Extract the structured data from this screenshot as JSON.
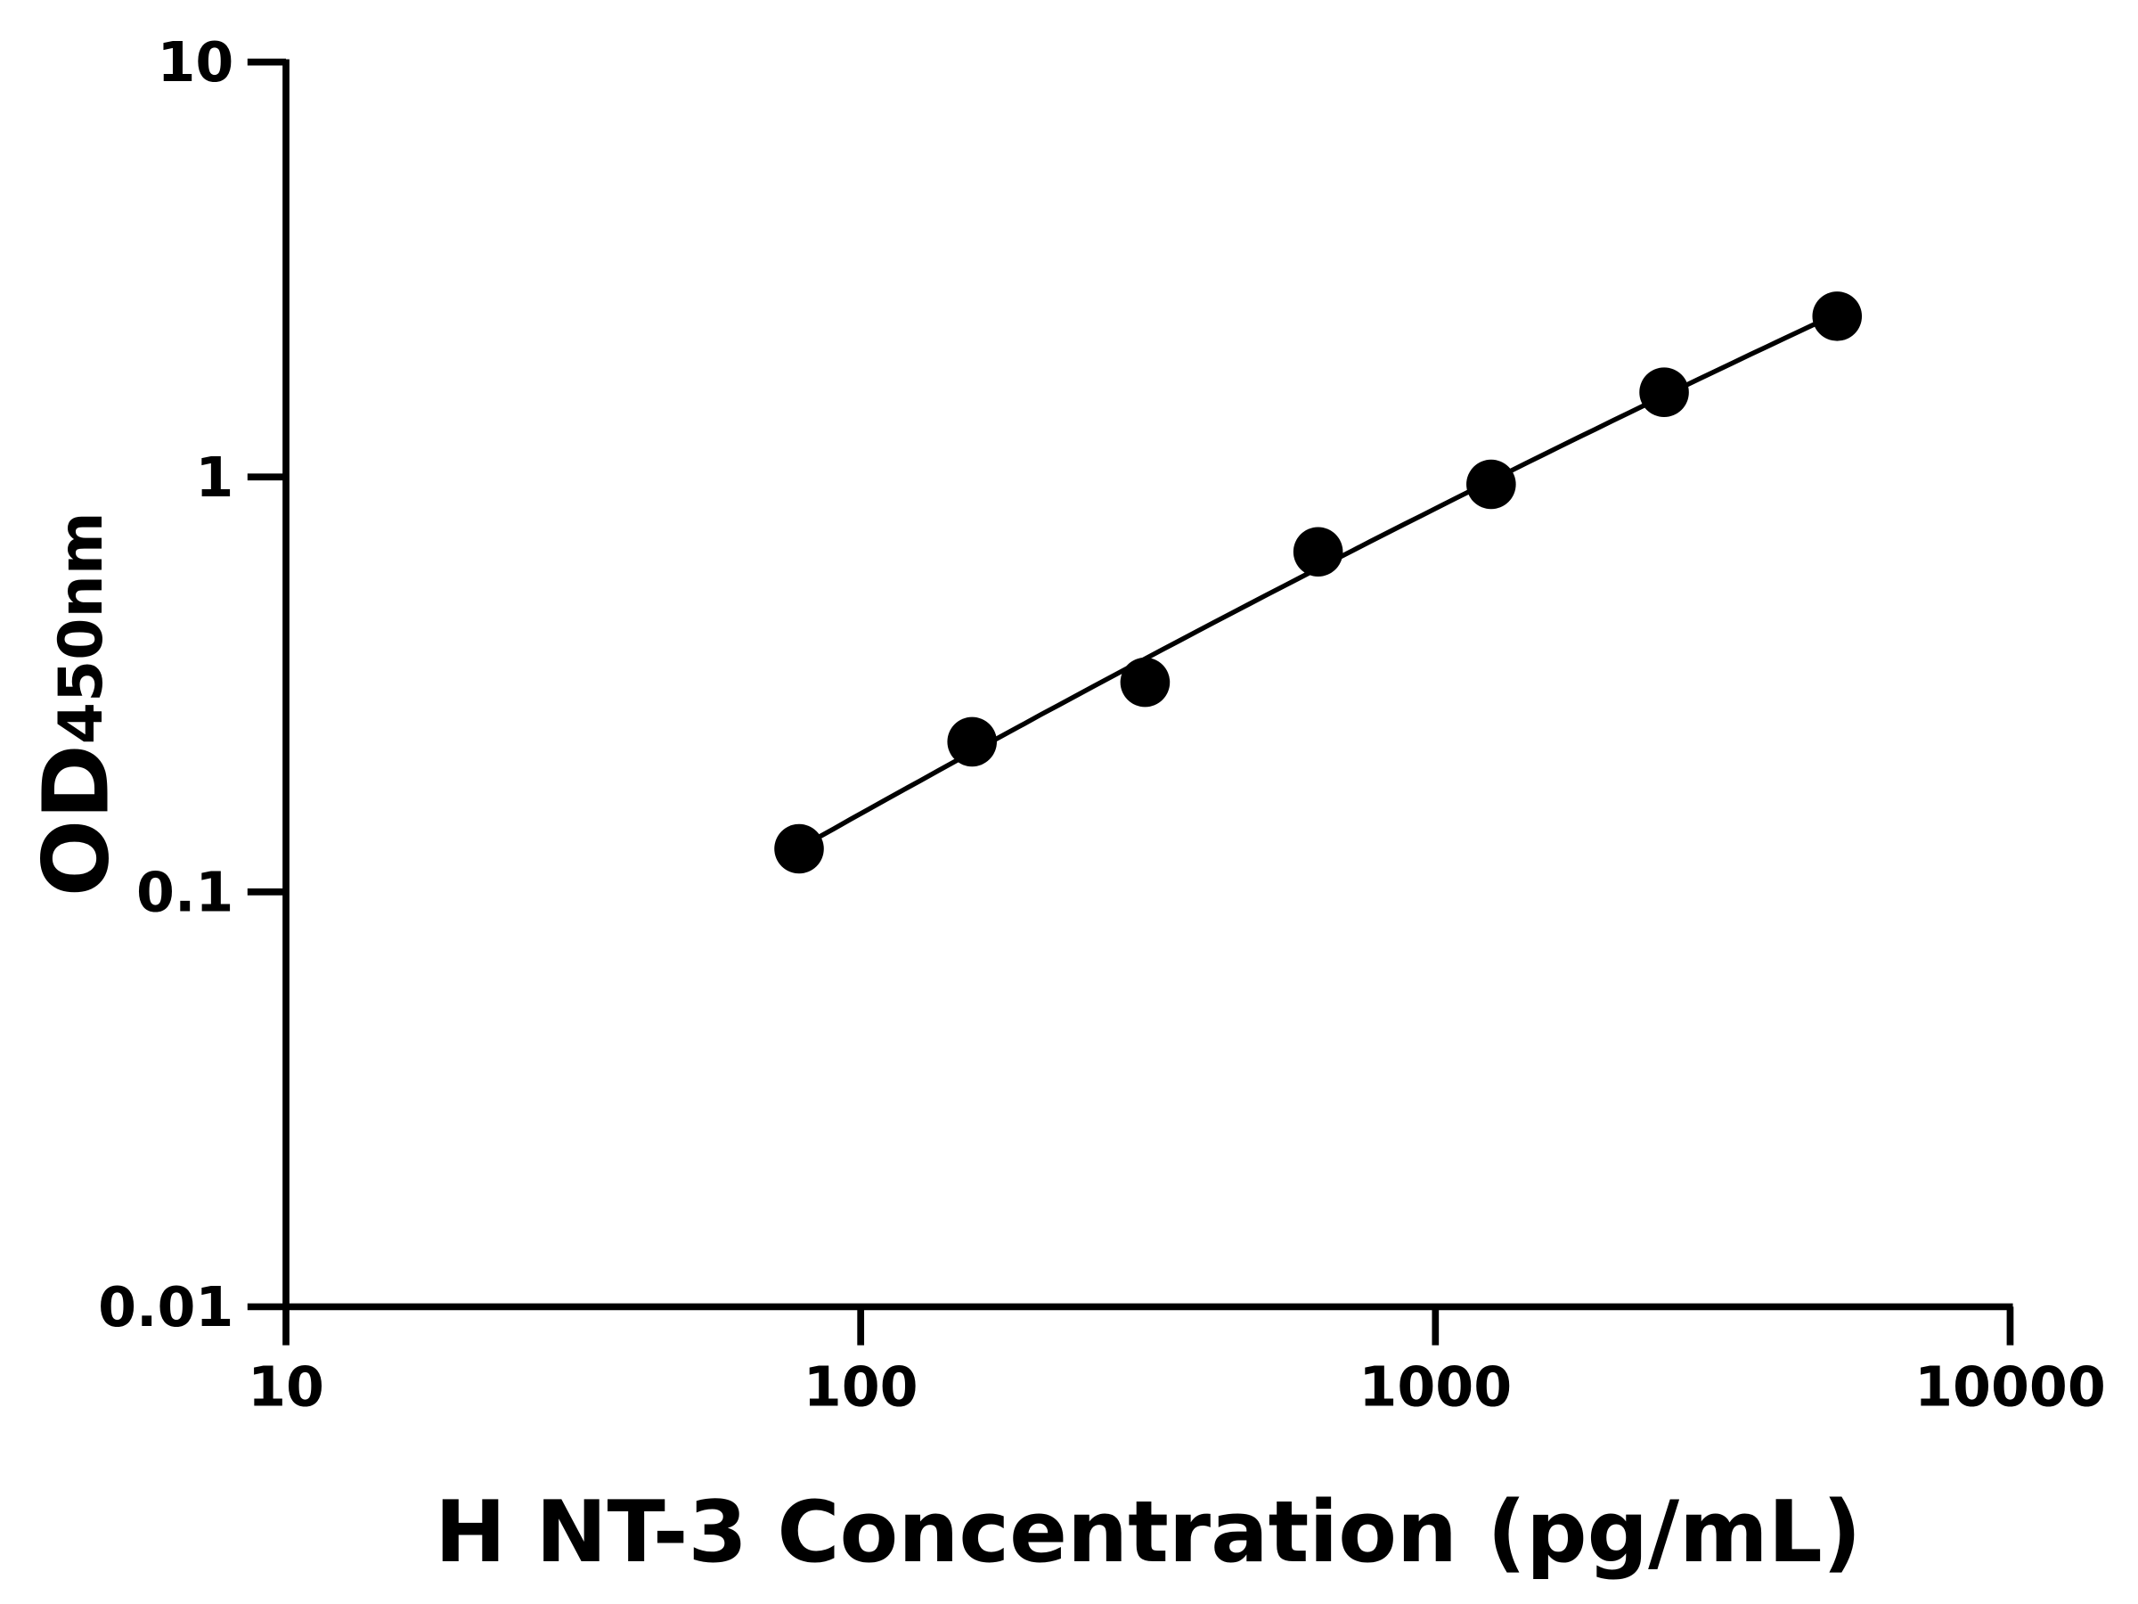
{
  "chart_data": {
    "type": "scatter",
    "title": "",
    "xlabel": "H NT-3 Concentration (pg/mL)",
    "ylabel": {
      "main": "OD",
      "subscript": "450nm"
    },
    "xscale": "log",
    "yscale": "log",
    "xlim": [
      10,
      10000
    ],
    "ylim": [
      0.01,
      10
    ],
    "xticks": [
      "10",
      "100",
      "1000",
      "10000"
    ],
    "yticks": [
      "0.01",
      "0.1",
      "1",
      "10"
    ],
    "grid": false,
    "fit_line": true,
    "colors": {
      "points": "#000000",
      "line": "#000000",
      "axes": "#000000"
    },
    "x": [
      78.125,
      156.25,
      312.5,
      625,
      1250,
      2500,
      5000
    ],
    "y": [
      0.127,
      0.23,
      0.32,
      0.66,
      0.96,
      1.6,
      2.44
    ]
  }
}
